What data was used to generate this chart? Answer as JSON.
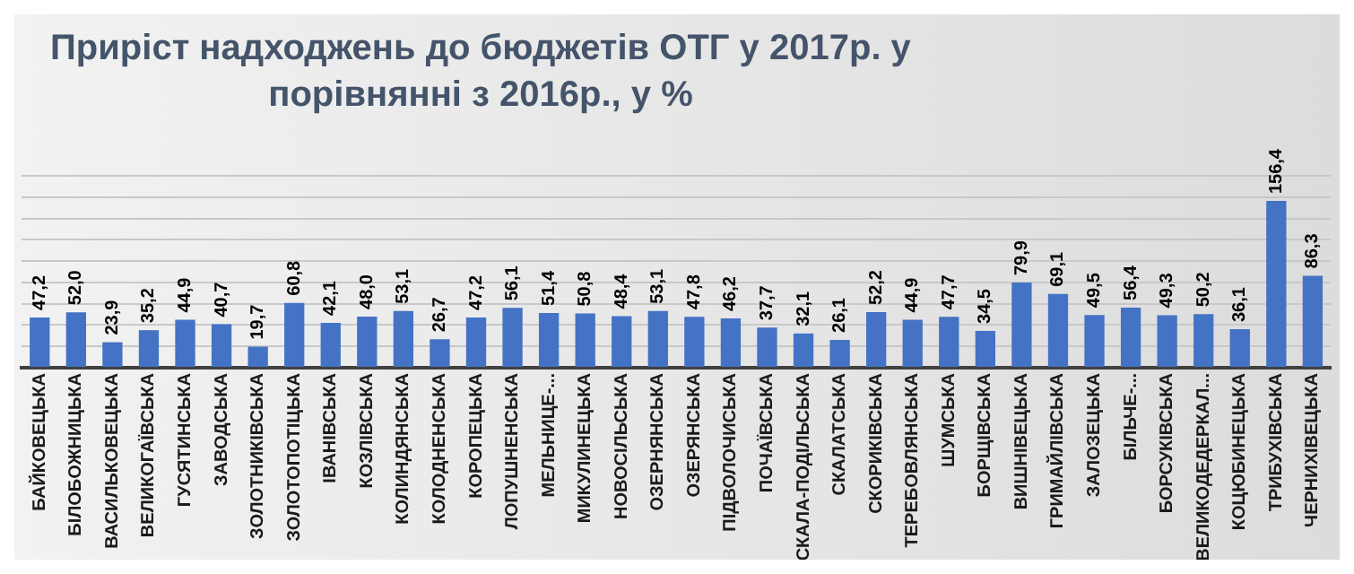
{
  "chart_data": {
    "type": "bar",
    "title": "Приріст надходжень до бюджетів ОТГ у 2017р. у порівнянні з 2016р., у %",
    "categories": [
      "БАЙКОВЕЦЬКА",
      "БІЛОБОЖНИЦЬКА",
      "ВАСИЛЬКОВЕЦЬКА",
      "ВЕЛИКОГАЇВСЬКА",
      "ГУСЯТИНСЬКА",
      "ЗАВОДСЬКА",
      "ЗОЛОТНИКІВСЬКА",
      "ЗОЛОТОПОТІЦЬКА",
      "ІВАНІВСЬКА",
      "КОЗЛІВСЬКА",
      "КОЛИНДЯНСЬКА",
      "КОЛОДНЕНСЬКА",
      "КОРОПЕЦЬКА",
      "ЛОПУШНЕНСЬКА",
      "МЕЛЬНИЦЕ-...",
      "МИКУЛИНЕЦЬКА",
      "НОВОСІЛЬСЬКА",
      "ОЗЕРНЯНСЬКА",
      "ОЗЕРЯНСЬКА",
      "ПІДВОЛОЧИСЬКА",
      "ПОЧАЇВСЬКА",
      "СКАЛА-ПОДІЛЬСЬКА",
      "СКАЛАТСЬКА",
      "СКОРИКІВСЬКА",
      "ТЕРЕБОВЛЯНСЬКА",
      "ШУМСЬКА",
      "БОРЩІВСЬКА",
      "ВИШНІВЕЦЬКА",
      "ГРИМАЙЛІВСЬКА",
      "ЗАЛОЗЕЦЬКА",
      "БІЛЬЧЕ-...",
      "БОРСУКІВСЬКА",
      "ВЕЛИКОДЕДЕРКАЛ...",
      "КОЦЮБИНЕЦЬКА",
      "ТРИБУХІВСЬКА",
      "ЧЕРНИХІВЕЦЬКА"
    ],
    "values": [
      47.2,
      52.0,
      23.9,
      35.2,
      44.9,
      40.7,
      19.7,
      60.8,
      42.1,
      48.0,
      53.1,
      26.7,
      47.2,
      56.1,
      51.4,
      50.8,
      48.4,
      53.1,
      47.8,
      46.2,
      37.7,
      32.1,
      26.1,
      52.2,
      44.9,
      47.7,
      34.5,
      79.9,
      69.1,
      49.5,
      56.4,
      49.3,
      50.2,
      36.1,
      156.4,
      86.3
    ],
    "value_labels": [
      "47,2",
      "52,0",
      "23,9",
      "35,2",
      "44,9",
      "40,7",
      "19,7",
      "60,8",
      "42,1",
      "48,0",
      "53,1",
      "26,7",
      "47,2",
      "56,1",
      "51,4",
      "50,8",
      "48,4",
      "53,1",
      "47,8",
      "46,2",
      "37,7",
      "32,1",
      "26,1",
      "52,2",
      "44,9",
      "47,7",
      "34,5",
      "79,9",
      "69,1",
      "49,5",
      "56,4",
      "49,3",
      "50,2",
      "36,1",
      "156,4",
      "86,3"
    ],
    "color": "#4472c4",
    "ylim": [
      0,
      180
    ],
    "yticks": [
      {
        "value": 0,
        "label": null
      },
      {
        "value": 20,
        "label": null
      },
      {
        "value": 40,
        "label": null
      },
      {
        "value": 60,
        "label": null
      },
      {
        "value": 80,
        "label": null
      },
      {
        "value": 100,
        "label": null
      },
      {
        "value": 120,
        "label": null
      },
      {
        "value": 140,
        "label": null
      },
      {
        "value": 160,
        "label": null
      },
      {
        "value": 180,
        "label": null
      }
    ],
    "grid": "y",
    "tick_labels": "x",
    "legend": false
  }
}
